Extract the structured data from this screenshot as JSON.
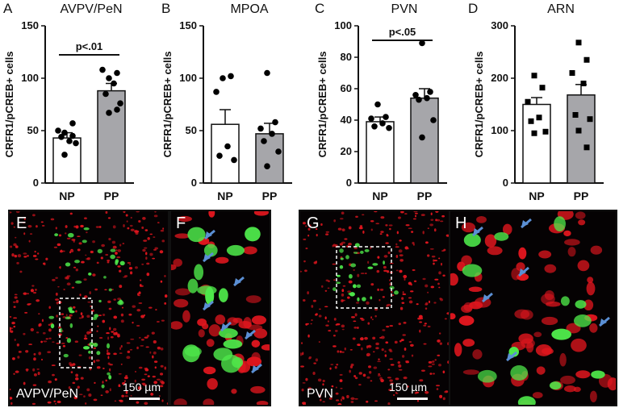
{
  "chart_data": [
    {
      "type": "bar",
      "letter": "A",
      "title": "AVPV/PeN",
      "ylabel": "CRFR1/pCREB+ cells",
      "categories": [
        "NP",
        "PP"
      ],
      "values": [
        43,
        88
      ],
      "errors": [
        5,
        7
      ],
      "ylim": [
        0,
        150
      ],
      "yticks": [
        "0",
        "50",
        "100",
        "150"
      ],
      "points": [
        [
          48,
          45,
          50,
          40,
          44,
          38,
          27,
          57
        ],
        [
          100,
          105,
          108,
          95,
          85,
          76,
          67,
          70
        ]
      ],
      "significance": "p<.01",
      "marker": "circle"
    },
    {
      "type": "bar",
      "letter": "B",
      "title": "MPOA",
      "ylabel": "CRFR1/pCREB+ cells",
      "categories": [
        "NP",
        "PP"
      ],
      "values": [
        56,
        47
      ],
      "errors": [
        14,
        10
      ],
      "ylim": [
        0,
        150
      ],
      "yticks": [
        "0",
        "50",
        "100",
        "150"
      ],
      "points": [
        [
          100,
          102,
          87,
          35,
          26,
          22
        ],
        [
          105,
          58,
          52,
          47,
          40,
          30,
          16
        ]
      ],
      "significance": "",
      "marker": "circle"
    },
    {
      "type": "bar",
      "letter": "C",
      "title": "PVN",
      "ylabel": "CRFR1/pCREB+ cells",
      "categories": [
        "NP",
        "PP"
      ],
      "values": [
        39,
        54
      ],
      "errors": [
        3,
        6
      ],
      "ylim": [
        0,
        100
      ],
      "yticks": [
        "0",
        "20",
        "40",
        "60",
        "80",
        "100"
      ],
      "points": [
        [
          50,
          42,
          41,
          38,
          36,
          35
        ],
        [
          89,
          58,
          56,
          54,
          53,
          40,
          29
        ]
      ],
      "significance": "p<.05",
      "marker": "circle"
    },
    {
      "type": "bar",
      "letter": "D",
      "title": "ARN",
      "ylabel": "CRFR1/pCREB+ cells",
      "categories": [
        "NP",
        "PP"
      ],
      "values": [
        150,
        168
      ],
      "errors": [
        13,
        20
      ],
      "ylim": [
        0,
        300
      ],
      "yticks": [
        "0",
        "100",
        "200",
        "300"
      ],
      "points": [
        [
          205,
          182,
          155,
          125,
          118,
          98,
          95
        ],
        [
          268,
          235,
          210,
          190,
          130,
          122,
          100,
          68
        ]
      ],
      "significance": "",
      "marker": "square"
    }
  ],
  "micrographs": [
    {
      "letter": "E",
      "region": "AVPV/PeN",
      "scale": "150 µm"
    },
    {
      "letter": "F",
      "region": "",
      "scale": ""
    },
    {
      "letter": "G",
      "region": "PVN",
      "scale": "150 µm"
    },
    {
      "letter": "H",
      "region": "",
      "scale": ""
    }
  ],
  "colors": {
    "np_bar": "#ffffff",
    "pp_bar": "#a6a6aa",
    "points": "#000000",
    "cells_red": "#e0161e",
    "cells_green": "#4ee84a",
    "arrow": "#5b8fd4"
  }
}
